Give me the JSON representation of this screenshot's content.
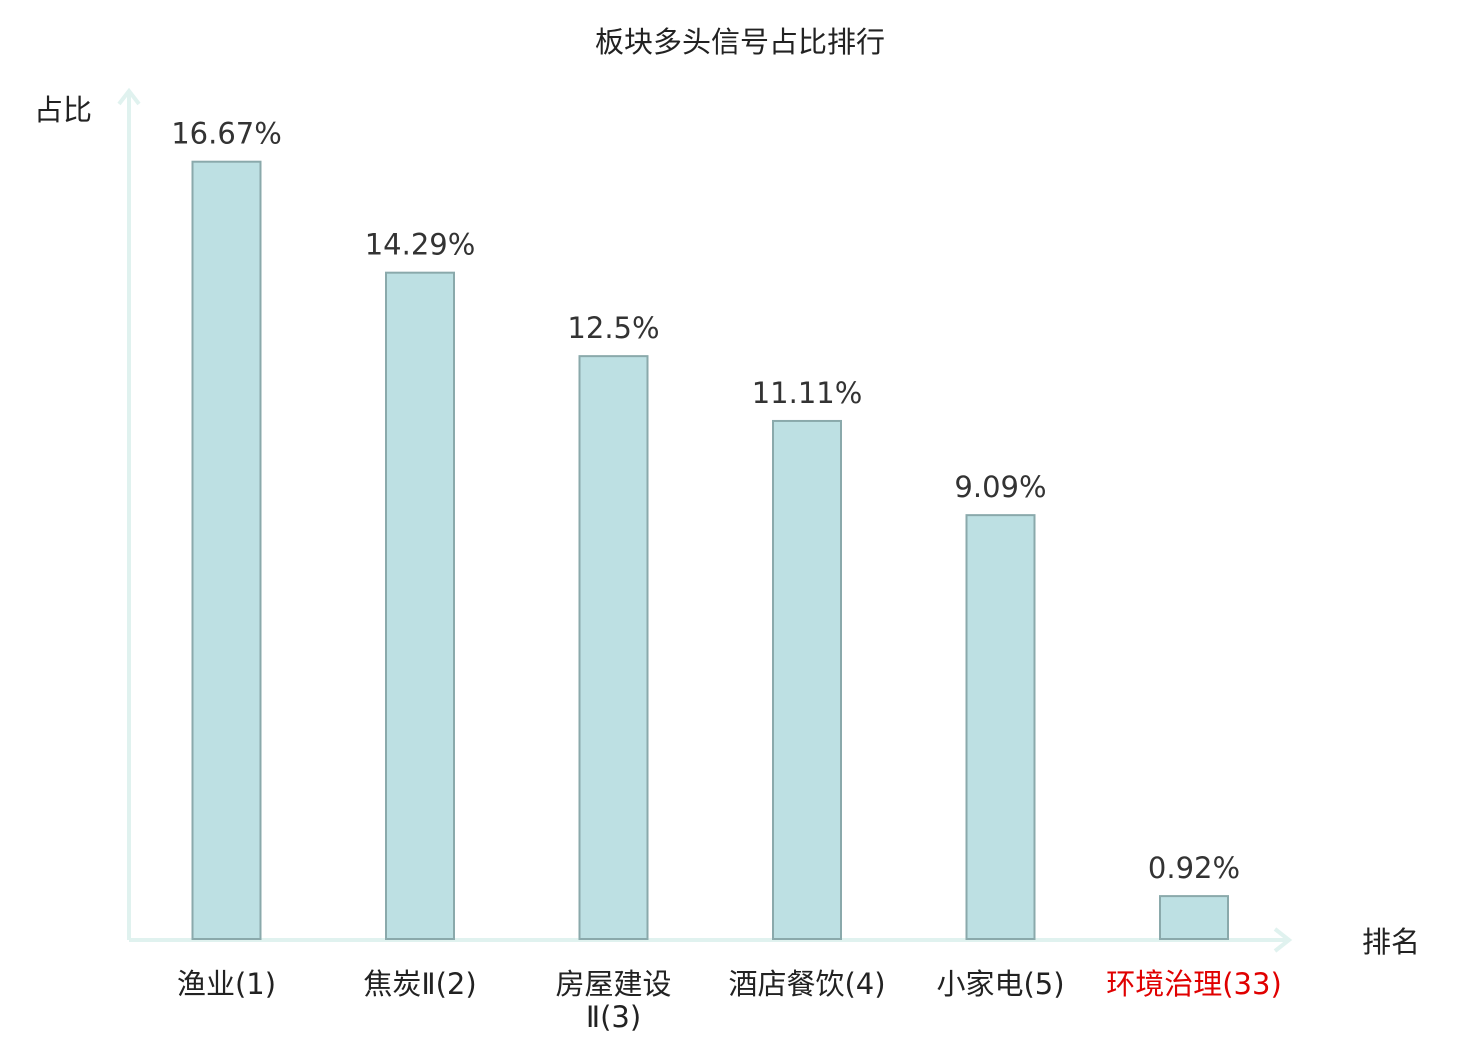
{
  "chart_data": {
    "type": "bar",
    "title": "板块多头信号占比排行",
    "ylabel": "占比",
    "xlabel": "排名",
    "categories": [
      "渔业(1)",
      "焦炭Ⅱ(2)",
      "房屋建设Ⅱ(3)",
      "酒店餐饮(4)",
      "小家电(5)",
      "环境治理(33)"
    ],
    "category_lines": [
      [
        "渔业(1)"
      ],
      [
        "焦炭Ⅱ(2)"
      ],
      [
        "房屋建设",
        "Ⅱ(3)"
      ],
      [
        "酒店餐饮(4)"
      ],
      [
        "小家电(5)"
      ],
      [
        "环境治理(33)"
      ]
    ],
    "values": [
      16.67,
      14.29,
      12.5,
      11.11,
      9.09,
      0.92
    ],
    "value_labels": [
      "16.67%",
      "14.29%",
      "12.5%",
      "11.11%",
      "9.09%",
      "0.92%"
    ],
    "highlighted": [
      false,
      false,
      false,
      false,
      false,
      true
    ],
    "ylim": [
      0,
      17.5
    ],
    "grid": false,
    "colors": {
      "bar_fill": "#bde0e3",
      "bar_stroke": "#8aa9ab",
      "axis": "#e0f2ef",
      "text": "#333333",
      "highlight_text": "#e00000"
    }
  }
}
